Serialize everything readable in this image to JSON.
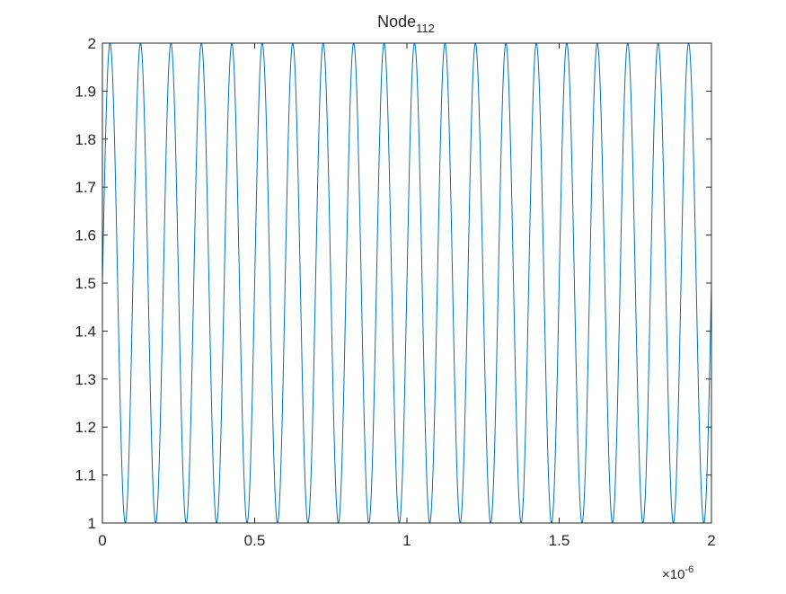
{
  "chart_data": {
    "type": "line",
    "title": "Node",
    "title_subscript": "112",
    "xlabel": "",
    "ylabel": "",
    "xlim": [
      0,
      2e-06
    ],
    "ylim": [
      1,
      2
    ],
    "x_exponent_label": "×10",
    "x_exponent": "-6",
    "x_ticks": [
      0,
      0.5,
      1,
      1.5,
      2
    ],
    "x_tick_labels": [
      "0",
      "0.5",
      "1",
      "1.5",
      "2"
    ],
    "y_ticks": [
      1,
      1.1,
      1.2,
      1.3,
      1.4,
      1.5,
      1.6,
      1.7,
      1.8,
      1.9,
      2
    ],
    "y_tick_labels": [
      "1",
      "1.1",
      "1.2",
      "1.3",
      "1.4",
      "1.5",
      "1.6",
      "1.7",
      "1.8",
      "1.9",
      "2"
    ],
    "grid": false,
    "series": [
      {
        "color": "#0072BD",
        "function": "1.5 + 0.5*sin(2*pi*f*t)",
        "amplitude": 0.5,
        "offset": 1.5,
        "frequency_hz": 10000000,
        "t_start": 0,
        "t_end": 2e-06,
        "x": [
          0,
          2.5e-08,
          5e-08,
          7.5e-08,
          1e-07,
          1.25e-07,
          1.5e-07,
          1.75e-07,
          2e-07
        ],
        "y": [
          1.5,
          2.0,
          1.5,
          1.0,
          1.5,
          2.0,
          1.5,
          1.0,
          1.5
        ]
      }
    ]
  }
}
